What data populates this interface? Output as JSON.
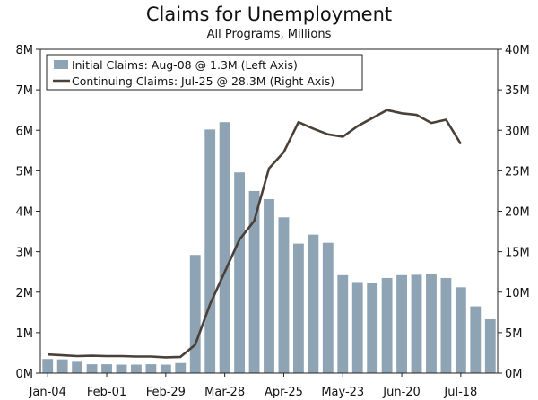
{
  "chart_data": {
    "type": "bar+line",
    "title": "Claims for Unemployment",
    "subtitle": "All Programs, Millions",
    "x_tick_labels": [
      "Jan-04",
      "Feb-01",
      "Feb-29",
      "Mar-28",
      "Apr-25",
      "May-23",
      "Jun-20",
      "Jul-18"
    ],
    "left_axis": {
      "ticks": [
        "0M",
        "1M",
        "2M",
        "3M",
        "4M",
        "5M",
        "6M",
        "7M",
        "8M"
      ],
      "ylim": [
        0,
        8
      ]
    },
    "right_axis": {
      "ticks": [
        "0M",
        "5M",
        "10M",
        "15M",
        "20M",
        "25M",
        "30M",
        "35M",
        "40M"
      ],
      "ylim": [
        0,
        40
      ]
    },
    "legend": {
      "placement": "top-left",
      "bars_label": "Initial Claims: Aug-08 @ 1.3M (Left Axis)",
      "line_label": "Continuing Claims: Jul-25 @ 28.3M (Right Axis)"
    },
    "series": [
      {
        "name": "Initial Claims",
        "type": "bar",
        "axis": "left",
        "color": "#8ea4b5",
        "values": [
          0.35,
          0.34,
          0.28,
          0.22,
          0.22,
          0.21,
          0.21,
          0.22,
          0.21,
          0.25,
          2.92,
          6.02,
          6.2,
          4.96,
          4.5,
          4.3,
          3.85,
          3.2,
          3.42,
          3.22,
          2.42,
          2.25,
          2.23,
          2.35,
          2.42,
          2.43,
          2.46,
          2.35,
          2.12,
          1.65,
          1.33
        ]
      },
      {
        "name": "Continuing Claims",
        "type": "line",
        "axis": "right",
        "color": "#4a4038",
        "values": [
          2.3,
          2.2,
          2.1,
          2.15,
          2.1,
          2.1,
          2.05,
          2.05,
          1.95,
          2.0,
          3.5,
          8.5,
          12.5,
          16.5,
          18.8,
          25.3,
          27.3,
          31.0,
          30.2,
          29.5,
          29.2,
          30.5,
          31.5,
          32.5,
          32.1,
          31.9,
          30.9,
          31.3,
          28.3
        ]
      }
    ],
    "grid": false
  }
}
